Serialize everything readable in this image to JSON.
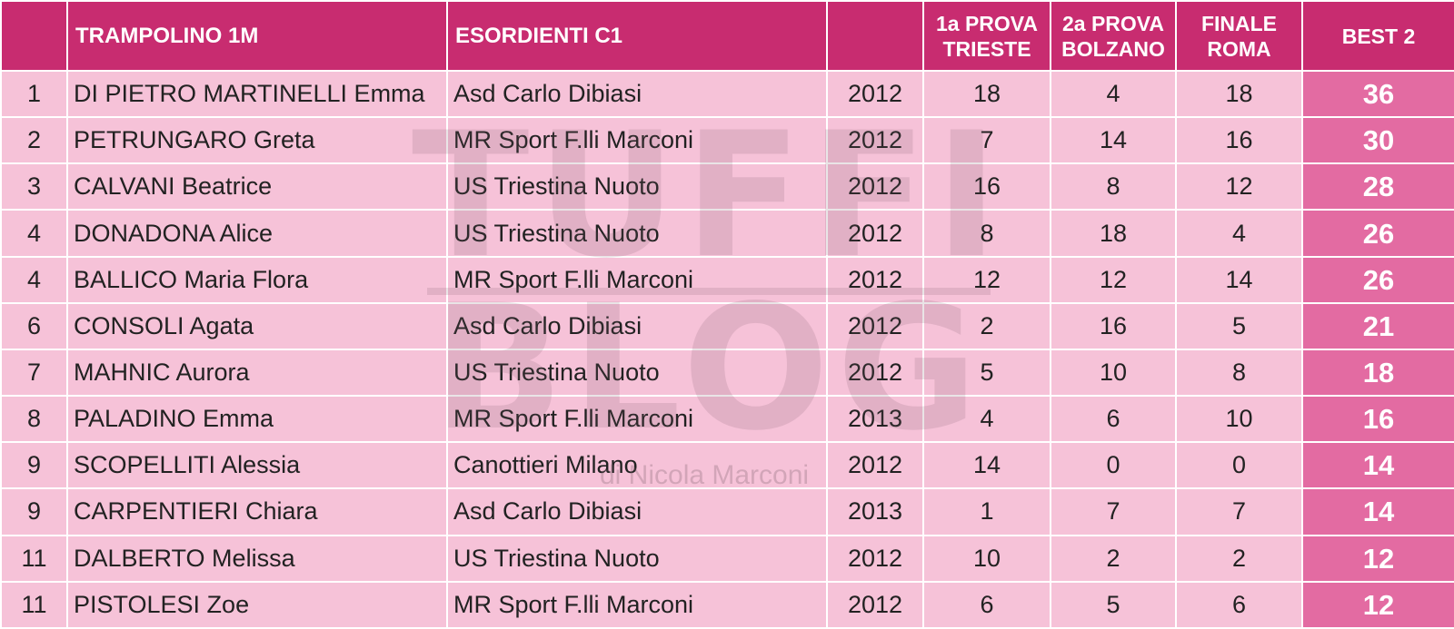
{
  "header": {
    "rank": "",
    "category": "TRAMPOLINO 1M",
    "division": "ESORDIENTI C1",
    "year": "",
    "prova1": "1a PROVA TRIESTE",
    "prova2": "2a PROVA BOLZANO",
    "finale": "FINALE ROMA",
    "best": "BEST 2"
  },
  "rows": [
    {
      "rank": "1",
      "name": "DI PIETRO MARTINELLI Emma",
      "club": "Asd Carlo Dibiasi",
      "year": "2012",
      "p1": "18",
      "p2": "4",
      "fin": "18",
      "best": "36"
    },
    {
      "rank": "2",
      "name": "PETRUNGARO Greta",
      "club": "MR Sport F.lli Marconi",
      "year": "2012",
      "p1": "7",
      "p2": "14",
      "fin": "16",
      "best": "30"
    },
    {
      "rank": "3",
      "name": "CALVANI Beatrice",
      "club": "US Triestina Nuoto",
      "year": "2012",
      "p1": "16",
      "p2": "8",
      "fin": "12",
      "best": "28"
    },
    {
      "rank": "4",
      "name": "DONADONA Alice",
      "club": "US Triestina Nuoto",
      "year": "2012",
      "p1": "8",
      "p2": "18",
      "fin": "4",
      "best": "26"
    },
    {
      "rank": "4",
      "name": "BALLICO Maria Flora",
      "club": "MR Sport F.lli Marconi",
      "year": "2012",
      "p1": "12",
      "p2": "12",
      "fin": "14",
      "best": "26"
    },
    {
      "rank": "6",
      "name": "CONSOLI Agata",
      "club": "Asd Carlo Dibiasi",
      "year": "2012",
      "p1": "2",
      "p2": "16",
      "fin": "5",
      "best": "21"
    },
    {
      "rank": "7",
      "name": "MAHNIC Aurora",
      "club": "US Triestina Nuoto",
      "year": "2012",
      "p1": "5",
      "p2": "10",
      "fin": "8",
      "best": "18"
    },
    {
      "rank": "8",
      "name": "PALADINO Emma",
      "club": "MR Sport F.lli Marconi",
      "year": "2013",
      "p1": "4",
      "p2": "6",
      "fin": "10",
      "best": "16"
    },
    {
      "rank": "9",
      "name": "SCOPELLITI Alessia",
      "club": "Canottieri Milano",
      "year": "2012",
      "p1": "14",
      "p2": "0",
      "fin": "0",
      "best": "14"
    },
    {
      "rank": "9",
      "name": "CARPENTIERI Chiara",
      "club": "Asd Carlo Dibiasi",
      "year": "2013",
      "p1": "1",
      "p2": "7",
      "fin": "7",
      "best": "14"
    },
    {
      "rank": "11",
      "name": "DALBERTO Melissa",
      "club": "US Triestina Nuoto",
      "year": "2012",
      "p1": "10",
      "p2": "2",
      "fin": "2",
      "best": "12"
    },
    {
      "rank": "11",
      "name": "PISTOLESI Zoe",
      "club": "MR Sport F.lli Marconi",
      "year": "2012",
      "p1": "6",
      "p2": "5",
      "fin": "6",
      "best": "12"
    }
  ],
  "watermark": {
    "line1": "TUFFI",
    "line2": "BLOG",
    "byline": "di Nicola Marconi"
  },
  "colors": {
    "header_bg": "#c82c70",
    "row_bg": "#f6c2d8",
    "best_bg": "#e36ba2"
  }
}
